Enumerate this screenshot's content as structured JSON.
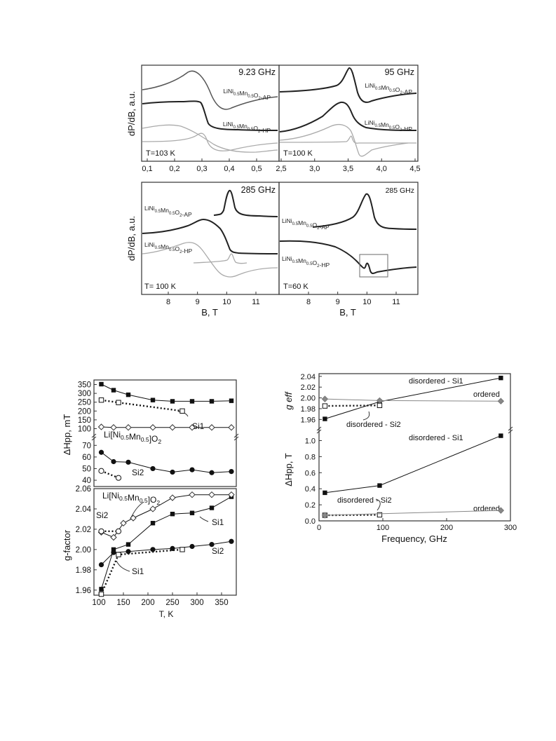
{
  "figure_top": {
    "ylabel": "dP/dB, a.u.",
    "xlabel": "B, T",
    "panels": [
      {
        "freq": "9.23 GHz",
        "temp": "T=103 K",
        "labels": [
          "LiNi0.5Mn0.5O2-AP",
          "LiNi0.5Mn0.5O2-HP"
        ],
        "xticks": [
          "0,1",
          "0,2",
          "0,3",
          "0,4",
          "0,5"
        ]
      },
      {
        "freq": "95 GHz",
        "temp": "T=100 K",
        "labels": [
          "LiNi0.5Mn0.5O2-AP",
          "LiNi0.5Mn0.5O2-HP"
        ],
        "xticks": [
          "2,5",
          "3,0",
          "3,5",
          "4,0",
          "4,5"
        ]
      },
      {
        "freq": "285 GHz",
        "temp": "T= 100 K",
        "labels": [
          "LiNi0.5Mn0.5O2-AP",
          "LiNi0.5Mn0.5O2-HP"
        ],
        "xticks": [
          "8",
          "9",
          "10",
          "11"
        ]
      },
      {
        "freq": "285 GHz",
        "temp": "T=60 K",
        "labels": [
          "LiNi0.5Mn0.5O2-AP",
          "LiNi0.5Mn0.5O2-HP"
        ],
        "xticks": [
          "8",
          "9",
          "10",
          "11"
        ]
      }
    ]
  },
  "chart_data": [
    {
      "type": "line",
      "title": "",
      "ylabel": "ΔHpp, mT",
      "compound": "Li[Ni0.5Mn0.5]O2",
      "yticks_upper": [
        "100",
        "150",
        "200",
        "250",
        "300",
        "350"
      ],
      "yticks_lower": [
        "40",
        "50",
        "60",
        "70"
      ],
      "xticks": [
        "100",
        "150",
        "200",
        "250",
        "300",
        "350"
      ],
      "annotations": [
        "Si1",
        "Si2"
      ],
      "series": [
        {
          "x": [
            105,
            130,
            160,
            210,
            250,
            290,
            330,
            370
          ],
          "values": [
            352,
            318,
            292,
            262,
            255,
            255,
            255,
            258
          ],
          "marker": "square-filled"
        },
        {
          "x": [
            105,
            140,
            270
          ],
          "values": [
            262,
            248,
            200
          ],
          "marker": "square-open",
          "dotted": true
        },
        {
          "x": [
            105,
            130,
            160,
            210,
            250,
            290,
            330,
            370
          ],
          "values": [
            110,
            107,
            107,
            107,
            107,
            107,
            107,
            107
          ],
          "marker": "diamond-open"
        },
        {
          "x": [
            105,
            130,
            160,
            210,
            250,
            290,
            330,
            370
          ],
          "values": [
            64,
            56,
            55.5,
            50,
            47,
            49,
            46.5,
            47.5
          ],
          "marker": "circle-filled"
        },
        {
          "x": [
            105,
            140
          ],
          "values": [
            48,
            42
          ],
          "marker": "circle-open",
          "dotted": true
        }
      ]
    },
    {
      "type": "line",
      "title": "",
      "xlabel": "T, K",
      "ylabel": "g-factor",
      "compound": "Li[Ni0.5Mn0.5]O2",
      "ylim": [
        1.955,
        2.06
      ],
      "yticks": [
        "1.96",
        "1.98",
        "2.00",
        "2.02",
        "2.04",
        "2.06"
      ],
      "xticks": [
        "100",
        "150",
        "200",
        "250",
        "300",
        "350"
      ],
      "annotations": [
        "Si2",
        "Si1",
        "Si1",
        "Si2"
      ],
      "series": [
        {
          "x": [
            105,
            130,
            160,
            210,
            250,
            290,
            330,
            370
          ],
          "values": [
            1.961,
            2.0,
            2.005,
            2.026,
            2.035,
            2.036,
            2.041,
            2.052
          ],
          "marker": "square-filled"
        },
        {
          "x": [
            105,
            130,
            160,
            210,
            250,
            290,
            330,
            370
          ],
          "values": [
            1.985,
            1.997,
            1.998,
            2.0,
            2.001,
            2.003,
            2.005,
            2.008
          ],
          "marker": "circle-filled"
        },
        {
          "x": [
            105,
            130,
            150,
            170,
            210,
            250,
            290,
            330,
            370
          ],
          "values": [
            2.017,
            2.012,
            2.026,
            2.031,
            2.04,
            2.051,
            2.054,
            2.054,
            2.054
          ],
          "marker": "diamond-open"
        },
        {
          "x": [
            105,
            140
          ],
          "values": [
            2.018,
            2.018
          ],
          "marker": "circle-open",
          "dotted": true
        },
        {
          "x": [
            105,
            140,
            270
          ],
          "values": [
            1.956,
            1.995,
            2.0
          ],
          "marker": "square-open",
          "dotted": true
        }
      ]
    },
    {
      "type": "line",
      "title": "",
      "ylabel": "g eff",
      "yticks": [
        "1.96",
        "1.98",
        "2.00",
        "2.02",
        "2.04"
      ],
      "annotations": [
        "disordered - Si1",
        "ordered",
        "disordered - Si2"
      ],
      "series": [
        {
          "name": "disordered - Si1",
          "x": [
            9.23,
            95,
            285
          ],
          "values": [
            1.961,
            1.993,
            2.037
          ],
          "marker": "square-filled"
        },
        {
          "name": "ordered",
          "x": [
            9.23,
            95,
            285
          ],
          "values": [
            1.998,
            1.995,
            1.994
          ],
          "marker": "diamond-gray"
        },
        {
          "name": "disordered - Si2",
          "x": [
            9.23,
            95
          ],
          "values": [
            1.985,
            1.986
          ],
          "marker": "square-open",
          "dotted": true
        }
      ]
    },
    {
      "type": "line",
      "title": "",
      "xlabel": "Frequency, GHz",
      "ylabel": "ΔHpp, T",
      "ylim": [
        0,
        1.1
      ],
      "yticks": [
        "0.0",
        "0.2",
        "0.4",
        "0.6",
        "0.8",
        "1.0"
      ],
      "xticks": [
        "0",
        "100",
        "200",
        "300"
      ],
      "annotations": [
        "disordered - Si1",
        "disordered - Si2",
        "ordered"
      ],
      "series": [
        {
          "name": "disordered - Si1",
          "x": [
            9.23,
            95,
            285
          ],
          "values": [
            0.35,
            0.44,
            1.06
          ],
          "marker": "square-filled"
        },
        {
          "name": "disordered - Si2",
          "x": [
            9.23,
            95
          ],
          "values": [
            0.07,
            0.075
          ],
          "marker": "square-open",
          "dotted": true
        },
        {
          "name": "ordered",
          "x": [
            9.23,
            285
          ],
          "values": [
            0.07,
            0.13
          ],
          "marker": "diamond-gray"
        }
      ]
    }
  ]
}
